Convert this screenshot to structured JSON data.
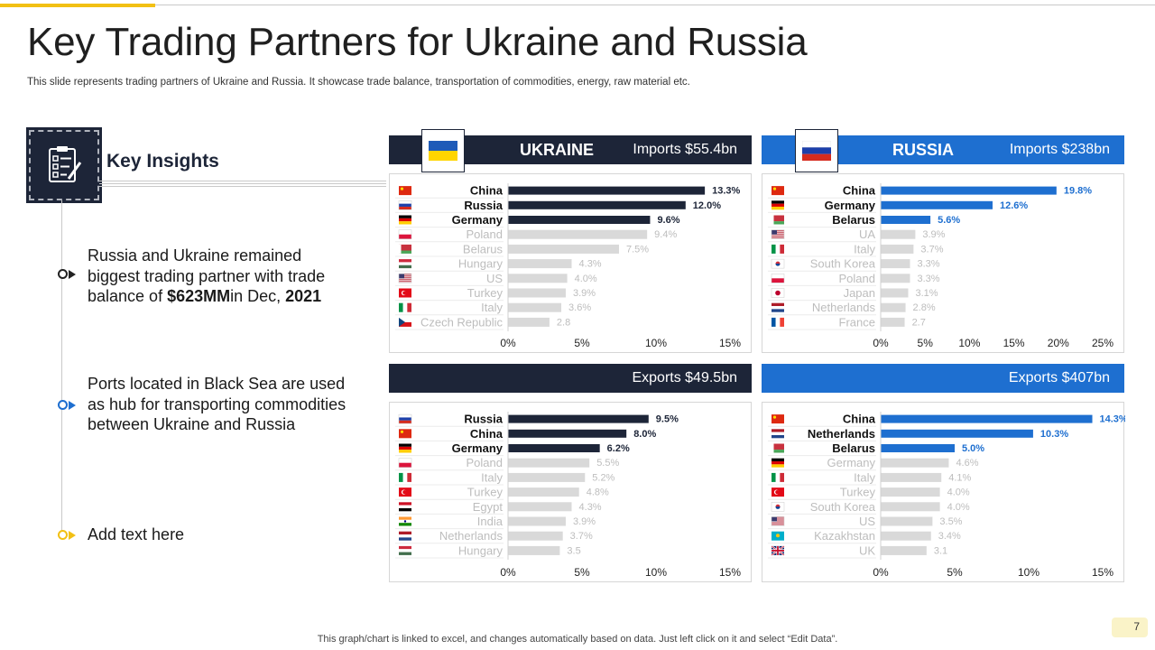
{
  "slide": {
    "title": "Key Trading Partners for Ukraine and Russia",
    "subtitle": "This slide represents trading partners of Ukraine and Russia. It showcase trade balance, transportation of commodities, energy, raw material etc.",
    "footer": "This graph/chart is linked to excel,  and changes automatically based on data. Just left click on it and select “Edit Data”.",
    "page_number": "7"
  },
  "insights": {
    "title": "Key Insights",
    "icon": "clipboard-checklist-icon",
    "bullets": [
      {
        "line1": "Russia and Ukraine remained",
        "line2": "biggest trading partner with trade",
        "line3_pre": "balance of ",
        "line3_bold1": "$623MM",
        "line3_mid": "in Dec, ",
        "line3_bold2": "2021"
      },
      {
        "line1": "Ports located in Black Sea are used",
        "line2": "as hub for transporting commodities",
        "line3": "between Ukraine and Russia"
      },
      {
        "line1": "Add text here"
      }
    ]
  },
  "panels": {
    "ukraine": {
      "country": "UKRAINE",
      "imports_label": "Imports  $55.4bn",
      "exports_label": "Exports  $49.5bn",
      "flag": "ukraine-flag"
    },
    "russia": {
      "country": "RUSSIA",
      "imports_label": "Imports  $238bn",
      "exports_label": "Exports  $407bn",
      "flag": "russia-flag"
    }
  },
  "colors": {
    "navy": "#1d2538",
    "blue": "#1e6fd0",
    "gray_bar": "#d9d9d9",
    "accent_yellow": "#f2c014"
  },
  "chart_data": [
    {
      "id": "ukraine-imports",
      "type": "bar",
      "orientation": "horizontal",
      "categories": [
        "China",
        "Russia",
        "Germany",
        "Poland",
        "Belarus",
        "Hungary",
        "US",
        "Turkey",
        "Italy",
        "Czech Republic"
      ],
      "values": [
        13.3,
        12.0,
        9.6,
        9.4,
        7.5,
        4.3,
        4.0,
        3.9,
        3.6,
        2.8
      ],
      "value_labels": [
        "13.3%",
        "12.0%",
        "9.6%",
        "9.4%",
        "7.5%",
        "4.3%",
        "4.0%",
        "3.9%",
        "3.6%",
        "2.8"
      ],
      "highlight_count": 3,
      "accent": "#1d2538",
      "flags": [
        "china",
        "russia",
        "germany",
        "poland",
        "belarus",
        "hungary",
        "us",
        "turkey",
        "italy",
        "czech"
      ],
      "xlim": [
        0,
        15
      ],
      "xticks": [
        "0%",
        "5%",
        "10%",
        "15%"
      ]
    },
    {
      "id": "russia-imports",
      "type": "bar",
      "orientation": "horizontal",
      "categories": [
        "China",
        "Germany",
        "Belarus",
        "UA",
        "Italy",
        "South Korea",
        "Poland",
        "Japan",
        "Netherlands",
        "France"
      ],
      "values": [
        19.8,
        12.6,
        5.6,
        3.9,
        3.7,
        3.3,
        3.3,
        3.1,
        2.8,
        2.7
      ],
      "value_labels": [
        "19.8%",
        "12.6%",
        "5.6%",
        "3.9%",
        "3.7%",
        "3.3%",
        "3.3%",
        "3.1%",
        "2.8%",
        "2.7"
      ],
      "highlight_count": 3,
      "accent": "#1e6fd0",
      "flags": [
        "china",
        "germany",
        "belarus",
        "us",
        "italy",
        "southkorea",
        "poland",
        "japan",
        "netherlands",
        "france"
      ],
      "xlim": [
        0,
        25
      ],
      "xticks": [
        "0%",
        "5%",
        "10%",
        "15%",
        "20%",
        "25%"
      ]
    },
    {
      "id": "ukraine-exports",
      "type": "bar",
      "orientation": "horizontal",
      "categories": [
        "Russia",
        "China",
        "Germany",
        "Poland",
        "Italy",
        "Turkey",
        "Egypt",
        "India",
        "Netherlands",
        "Hungary"
      ],
      "values": [
        9.5,
        8.0,
        6.2,
        5.5,
        5.2,
        4.8,
        4.3,
        3.9,
        3.7,
        3.5
      ],
      "value_labels": [
        "9.5%",
        "8.0%",
        "6.2%",
        "5.5%",
        "5.2%",
        "4.8%",
        "4.3%",
        "3.9%",
        "3.7%",
        "3.5"
      ],
      "highlight_count": 3,
      "accent": "#1d2538",
      "flags": [
        "russia",
        "china",
        "germany",
        "poland",
        "italy",
        "turkey",
        "egypt",
        "india",
        "netherlands",
        "hungary"
      ],
      "xlim": [
        0,
        15
      ],
      "xticks": [
        "0%",
        "5%",
        "10%",
        "15%"
      ]
    },
    {
      "id": "russia-exports",
      "type": "bar",
      "orientation": "horizontal",
      "categories": [
        "China",
        "Netherlands",
        "Belarus",
        "Germany",
        "Italy",
        "Turkey",
        "South Korea",
        "US",
        "Kazakhstan",
        "UK"
      ],
      "values": [
        14.3,
        10.3,
        5.0,
        4.6,
        4.1,
        4.0,
        4.0,
        3.5,
        3.4,
        3.1
      ],
      "value_labels": [
        "14.3%",
        "10.3%",
        "5.0%",
        "4.6%",
        "4.1%",
        "4.0%",
        "4.0%",
        "3.5%",
        "3.4%",
        "3.1"
      ],
      "highlight_count": 3,
      "accent": "#1e6fd0",
      "flags": [
        "china",
        "netherlands",
        "belarus",
        "germany",
        "italy",
        "turkey",
        "southkorea",
        "us",
        "kazakhstan",
        "uk"
      ],
      "xlim": [
        0,
        15
      ],
      "xticks": [
        "0%",
        "5%",
        "10%",
        "15%"
      ]
    }
  ]
}
